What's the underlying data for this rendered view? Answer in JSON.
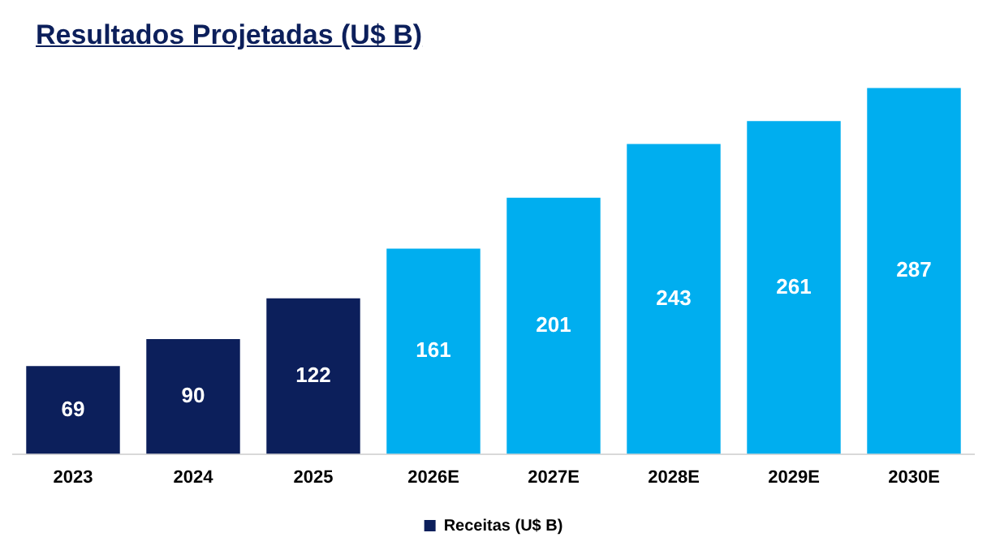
{
  "chart_data": {
    "type": "bar",
    "title": "Resultados Projetadas (U$ B)",
    "categories": [
      "2023",
      "2024",
      "2025",
      "2026E",
      "2027E",
      "2028E",
      "2029E",
      "2030E"
    ],
    "series": [
      {
        "name": "Receitas (U$ B)",
        "color": "#0c1f5b",
        "colors": [
          "#0c1f5b",
          "#0c1f5b",
          "#0c1f5b",
          "#00aeef",
          "#00aeef",
          "#00aeef",
          "#00aeef",
          "#00aeef"
        ],
        "values": [
          69,
          90,
          122,
          161,
          201,
          243,
          261,
          287
        ]
      }
    ],
    "data_labels": true,
    "legend": "bottom",
    "grid": false
  }
}
